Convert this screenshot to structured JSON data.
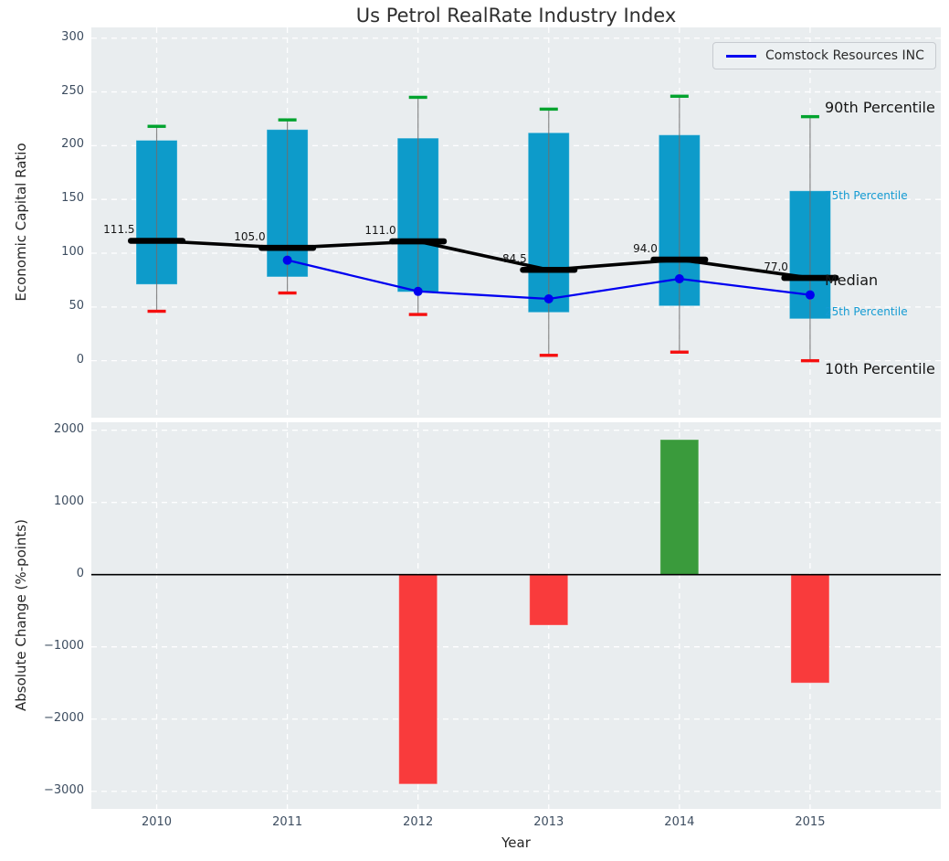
{
  "colors": {
    "axes_bg": "#e9edef",
    "grid": "#ffffff",
    "box_fill": "#0d9bca",
    "whisker_line": "#6e6e6e",
    "cap_high": "#00a32e",
    "cap_low": "#f50f0f",
    "median_line": "#000000",
    "comstock_blue": "#0000f0",
    "bar_positive": "#3a9b3c",
    "bar_negative": "#f93b3c",
    "zero_line": "#000000",
    "tick_text": "#3d4d60",
    "annotation_blue": "#149bd3"
  },
  "chart_data": [
    {
      "type": "boxplot+line",
      "title": "Us Petrol RealRate Industry Index",
      "ylabel": "Economic Capital Ratio",
      "ylim": [
        -53,
        310
      ],
      "yticks": [
        0,
        50,
        100,
        150,
        200,
        250,
        300
      ],
      "xlim": [
        2009.5,
        2016.0
      ],
      "categories": [
        2010,
        2011,
        2012,
        2013,
        2014,
        2015
      ],
      "grid": "white dashed, horizontal and vertical",
      "legend_position": "upper right",
      "legend": {
        "label": "Comstock Resources INC"
      },
      "boxes": [
        {
          "year": 2010,
          "p10": 46,
          "q1": 71,
          "median": 111.5,
          "q3": 205,
          "p90": 218,
          "label": "111.5"
        },
        {
          "year": 2011,
          "p10": 63,
          "q1": 78,
          "median": 105.0,
          "q3": 215,
          "p90": 224,
          "label": "105.0"
        },
        {
          "year": 2012,
          "p10": 43,
          "q1": 64,
          "median": 111.0,
          "q3": 207,
          "p90": 245,
          "label": "111.0"
        },
        {
          "year": 2013,
          "p10": 5,
          "q1": 45,
          "median": 84.5,
          "q3": 212,
          "p90": 234,
          "label": "84.5"
        },
        {
          "year": 2014,
          "p10": 8,
          "q1": 51,
          "median": 94.0,
          "q3": 210,
          "p90": 246,
          "label": "94.0"
        },
        {
          "year": 2015,
          "p10": 0,
          "q1": 39,
          "median": 77.0,
          "q3": 158,
          "p90": 227,
          "label": "77.0"
        }
      ],
      "series": [
        {
          "name": "Comstock Resources INC",
          "x": [
            2011,
            2012,
            2013,
            2014,
            2015
          ],
          "values": [
            93.5,
            64.5,
            57.5,
            76.2,
            61.2
          ]
        }
      ],
      "percentile_labels": {
        "p90": "90th Percentile",
        "p75": "75th Percentile",
        "median": "Median",
        "p25": "25th Percentile",
        "p10": "10th Percentile"
      }
    },
    {
      "type": "bar",
      "ylabel": "Absolute Change (%-points)",
      "xlabel": "Year",
      "categories": [
        2010,
        2011,
        2012,
        2013,
        2014,
        2015
      ],
      "values": [
        null,
        null,
        -2900,
        -700,
        1870,
        -1500
      ],
      "yticks": [
        -3000,
        -2000,
        -1000,
        0,
        1000,
        2000
      ],
      "ylim": [
        -3244,
        2110
      ],
      "xlim": [
        2009.5,
        2016.0
      ],
      "grid": "white dashed",
      "zero_line": true
    }
  ]
}
